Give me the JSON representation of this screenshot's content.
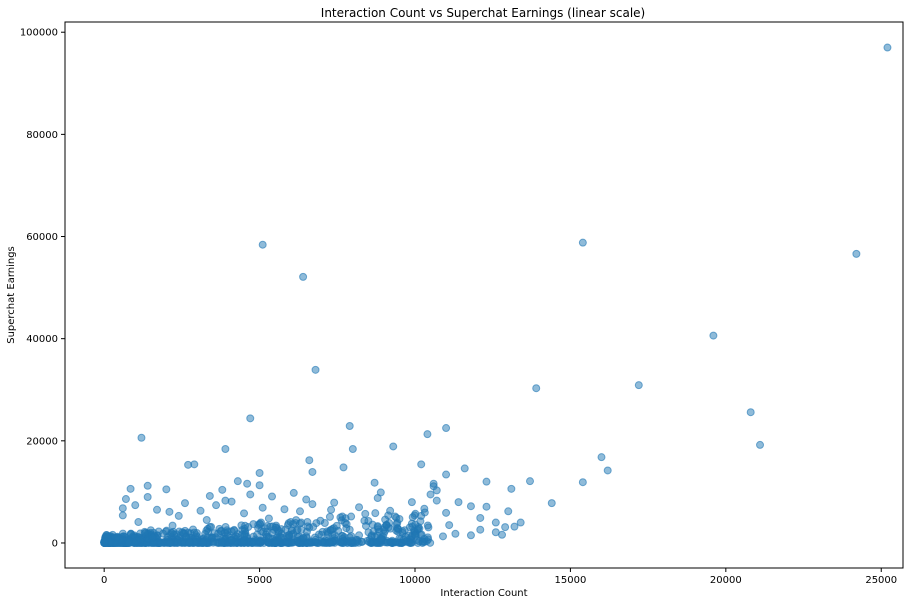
{
  "chart_data": {
    "type": "scatter",
    "title": "Interaction Count vs Superchat Earnings (linear scale)",
    "xlabel": "Interaction Count",
    "ylabel": "Superchat Earnings",
    "xlim": [
      -1260,
      25700
    ],
    "ylim": [
      -4900,
      102000
    ],
    "xticks": [
      0,
      5000,
      10000,
      15000,
      20000,
      25000
    ],
    "yticks": [
      0,
      20000,
      40000,
      60000,
      80000,
      100000
    ],
    "xtick_labels": [
      "0",
      "5000",
      "10000",
      "15000",
      "20000",
      "25000"
    ],
    "ytick_labels": [
      "0",
      "20000",
      "40000",
      "60000",
      "80000",
      "100000"
    ],
    "marker_color": "#1f77b4",
    "grid": false,
    "points": [
      [
        25200,
        97000
      ],
      [
        15400,
        58800
      ],
      [
        5100,
        58400
      ],
      [
        24200,
        56600
      ],
      [
        6400,
        52100
      ],
      [
        19600,
        40600
      ],
      [
        6800,
        33900
      ],
      [
        17200,
        30900
      ],
      [
        13900,
        30300
      ],
      [
        20800,
        25600
      ],
      [
        4700,
        24400
      ],
      [
        7900,
        22900
      ],
      [
        11000,
        22500
      ],
      [
        10400,
        21300
      ],
      [
        1200,
        20600
      ],
      [
        21100,
        19200
      ],
      [
        9300,
        18900
      ],
      [
        3900,
        18400
      ],
      [
        8000,
        18400
      ],
      [
        16000,
        16800
      ],
      [
        6600,
        16200
      ],
      [
        2700,
        15300
      ],
      [
        2900,
        15400
      ],
      [
        10200,
        15400
      ],
      [
        11600,
        14600
      ],
      [
        7700,
        14800
      ],
      [
        16200,
        14200
      ],
      [
        6700,
        13900
      ],
      [
        5000,
        13700
      ],
      [
        11000,
        13400
      ],
      [
        4300,
        12100
      ],
      [
        4600,
        11600
      ],
      [
        5000,
        11300
      ],
      [
        8700,
        11800
      ],
      [
        13700,
        12100
      ],
      [
        12300,
        12000
      ],
      [
        15400,
        11900
      ],
      [
        10600,
        11100
      ],
      [
        10600,
        11600
      ],
      [
        1400,
        11200
      ],
      [
        850,
        10600
      ],
      [
        2000,
        10500
      ],
      [
        13100,
        10600
      ],
      [
        10700,
        10300
      ],
      [
        3800,
        10400
      ],
      [
        6100,
        9800
      ],
      [
        8900,
        9900
      ],
      [
        4700,
        9500
      ],
      [
        10500,
        9500
      ],
      [
        1400,
        9000
      ],
      [
        3400,
        9200
      ],
      [
        5400,
        9100
      ],
      [
        8800,
        8800
      ],
      [
        10700,
        8300
      ],
      [
        700,
        8600
      ],
      [
        3900,
        8300
      ],
      [
        6500,
        8500
      ],
      [
        11400,
        8000
      ],
      [
        4100,
        8100
      ],
      [
        9900,
        8000
      ],
      [
        2600,
        7800
      ],
      [
        14400,
        7800
      ],
      [
        6700,
        7600
      ],
      [
        7400,
        7900
      ],
      [
        1000,
        7400
      ],
      [
        3600,
        7400
      ],
      [
        11800,
        7200
      ],
      [
        12300,
        7100
      ],
      [
        5100,
        6900
      ],
      [
        8200,
        7000
      ],
      [
        10300,
        6700
      ],
      [
        600,
        6800
      ],
      [
        5800,
        6600
      ],
      [
        7300,
        6500
      ],
      [
        1700,
        6500
      ],
      [
        3100,
        6300
      ],
      [
        9200,
        6300
      ],
      [
        2100,
        6100
      ],
      [
        6300,
        6200
      ],
      [
        13000,
        6200
      ],
      [
        11000,
        5900
      ],
      [
        4500,
        5800
      ],
      [
        8400,
        5700
      ],
      [
        600,
        5400
      ],
      [
        2400,
        5300
      ],
      [
        10200,
        5300
      ],
      [
        12100,
        4900
      ],
      [
        7600,
        5000
      ],
      [
        5300,
        4800
      ],
      [
        9500,
        4700
      ],
      [
        3300,
        4500
      ],
      [
        8500,
        4300
      ],
      [
        12600,
        4000
      ],
      [
        13400,
        4000
      ],
      [
        1100,
        4100
      ],
      [
        6000,
        4100
      ],
      [
        7100,
        3900
      ],
      [
        9900,
        3800
      ],
      [
        4800,
        3700
      ],
      [
        11100,
        3500
      ],
      [
        2200,
        3400
      ],
      [
        8800,
        3300
      ],
      [
        12900,
        3100
      ],
      [
        13200,
        3200
      ],
      [
        3400,
        3100
      ],
      [
        6600,
        3000
      ],
      [
        10100,
        2800
      ],
      [
        5700,
        2700
      ],
      [
        7900,
        2600
      ],
      [
        12100,
        2600
      ],
      [
        1500,
        2500
      ],
      [
        9400,
        2400
      ],
      [
        4100,
        2300
      ],
      [
        12600,
        2100
      ],
      [
        11800,
        1500
      ],
      [
        10900,
        1300
      ],
      [
        12800,
        1600
      ],
      [
        7900,
        1100
      ],
      [
        8900,
        900
      ],
      [
        10300,
        800
      ],
      [
        9700,
        1200
      ],
      [
        6400,
        1000
      ],
      [
        5300,
        900
      ],
      [
        8200,
        1500
      ],
      [
        9000,
        1900
      ],
      [
        7200,
        1700
      ],
      [
        11300,
        1800
      ],
      [
        10000,
        1600
      ],
      [
        8600,
        1300
      ],
      [
        6800,
        600
      ]
    ]
  }
}
